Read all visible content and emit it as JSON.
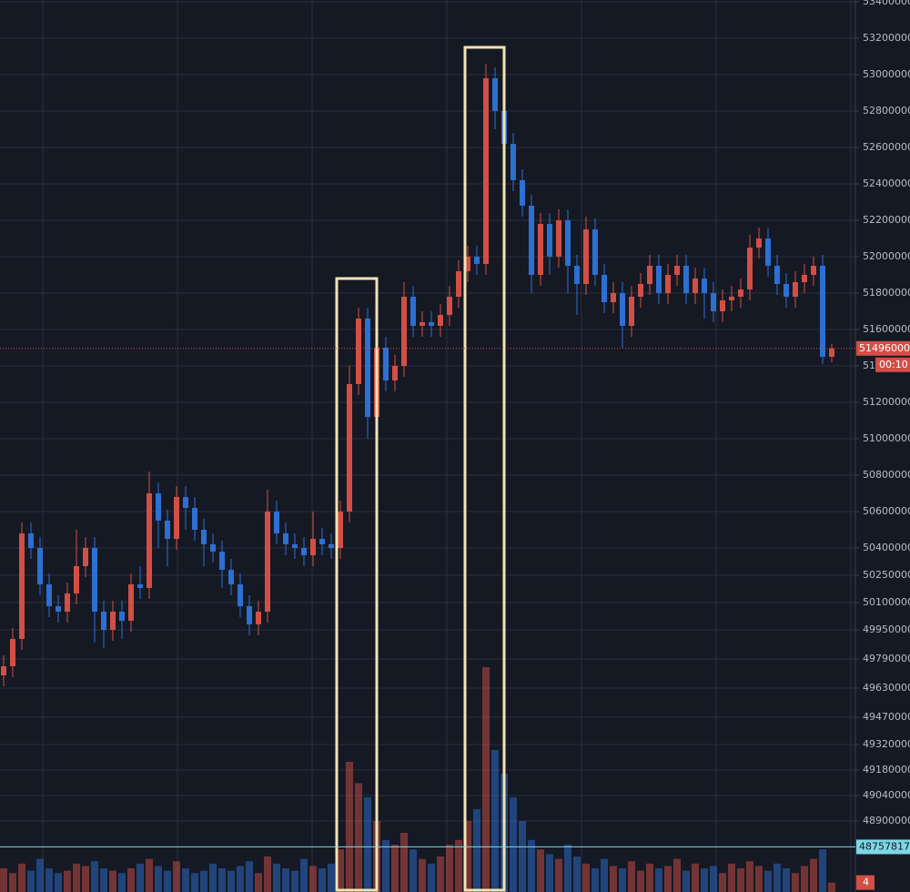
{
  "chart_data": {
    "type": "candlestick",
    "ylim": [
      48510000,
      53410000
    ],
    "yticks": [
      53400000,
      53200000,
      53000000,
      52800000,
      52600000,
      52400000,
      52200000,
      52000000,
      51800000,
      51600000,
      51400000,
      51200000,
      51000000,
      50800000,
      50600000,
      50400000,
      50250000,
      50100000,
      49950000,
      49790000,
      49630000,
      49470000,
      49320000,
      49180000,
      49040000,
      48900000
    ],
    "grid": true,
    "up_color": "#d24f45",
    "down_color": "#2d6fd2",
    "series": {
      "open": [
        49700000,
        49750000,
        49900000,
        50480000,
        50400000,
        50200000,
        50080000,
        50050000,
        50150000,
        50300000,
        50400000,
        50050000,
        49950000,
        50050000,
        50000000,
        50200000,
        50180000,
        50700000,
        50550000,
        50450000,
        50680000,
        50620000,
        50500000,
        50420000,
        50380000,
        50280000,
        50200000,
        50080000,
        49980000,
        50050000,
        50600000,
        50480000,
        50420000,
        50400000,
        50360000,
        50450000,
        50420000,
        50400000,
        50600000,
        51300000,
        51660000,
        51120000,
        51500000,
        51320000,
        51400000,
        51780000,
        51620000,
        51640000,
        51620000,
        51680000,
        51780000,
        51920000,
        52000000,
        51960000,
        52980000,
        52800000,
        52620000,
        52420000,
        52280000,
        51900000,
        52180000,
        52000000,
        52200000,
        51950000,
        51850000,
        52150000,
        51900000,
        51750000,
        51800000,
        51620000,
        51780000,
        51850000,
        51950000,
        51800000,
        51900000,
        51950000,
        51800000,
        51880000,
        51800000,
        51700000,
        51760000,
        51780000,
        51820000,
        52050000,
        52100000,
        51950000,
        51850000,
        51780000,
        51860000,
        51900000,
        51950000,
        51450000
      ],
      "high": [
        49810000,
        49960000,
        50540000,
        50540000,
        50460000,
        50260000,
        50140000,
        50210000,
        50500000,
        50460000,
        50460000,
        50110000,
        50110000,
        50110000,
        50260000,
        50300000,
        50820000,
        50760000,
        50610000,
        50740000,
        50740000,
        50680000,
        50560000,
        50480000,
        50440000,
        50340000,
        50260000,
        50140000,
        50110000,
        50720000,
        50660000,
        50540000,
        50480000,
        50460000,
        50600000,
        50510000,
        50480000,
        50660000,
        51400000,
        51720000,
        51720000,
        51560000,
        51560000,
        51460000,
        51860000,
        51840000,
        51700000,
        51700000,
        51740000,
        51840000,
        51980000,
        52060000,
        52060000,
        53060000,
        53040000,
        52860000,
        52680000,
        52480000,
        52340000,
        52240000,
        52240000,
        52260000,
        52260000,
        52010000,
        52220000,
        52210000,
        51960000,
        51860000,
        51860000,
        51840000,
        51910000,
        52010000,
        52010000,
        51960000,
        52010000,
        52010000,
        51940000,
        51940000,
        51860000,
        51820000,
        51840000,
        51880000,
        52120000,
        52160000,
        52160000,
        52010000,
        51910000,
        51920000,
        51960000,
        52000000,
        52010000,
        51520000
      ],
      "low": [
        49640000,
        49690000,
        49840000,
        50340000,
        50140000,
        50020000,
        49990000,
        49990000,
        50090000,
        50240000,
        49880000,
        49850000,
        49890000,
        49900000,
        49940000,
        50120000,
        50120000,
        50400000,
        50300000,
        50390000,
        50500000,
        50440000,
        50300000,
        50320000,
        50180000,
        50140000,
        50020000,
        49920000,
        49920000,
        49990000,
        50420000,
        50360000,
        50340000,
        50300000,
        50300000,
        50360000,
        50340000,
        50340000,
        50540000,
        51240000,
        51000000,
        51060000,
        51260000,
        51260000,
        51340000,
        51560000,
        51560000,
        51560000,
        51560000,
        51620000,
        51720000,
        51860000,
        51900000,
        51900000,
        52700000,
        52500000,
        52360000,
        52220000,
        51800000,
        51840000,
        51900000,
        51940000,
        51800000,
        51680000,
        51790000,
        51840000,
        51690000,
        51690000,
        51500000,
        51560000,
        51720000,
        51790000,
        51740000,
        51740000,
        51840000,
        51740000,
        51740000,
        51660000,
        51640000,
        51640000,
        51700000,
        51720000,
        51760000,
        51990000,
        51890000,
        51790000,
        51720000,
        51720000,
        51800000,
        51840000,
        51410000,
        51420000
      ],
      "close": [
        49750000,
        49900000,
        50480000,
        50400000,
        50200000,
        50080000,
        50050000,
        50150000,
        50300000,
        50400000,
        50050000,
        49950000,
        50050000,
        50000000,
        50200000,
        50180000,
        50700000,
        50550000,
        50450000,
        50680000,
        50620000,
        50500000,
        50420000,
        50380000,
        50280000,
        50200000,
        50080000,
        49980000,
        50050000,
        50600000,
        50480000,
        50420000,
        50400000,
        50360000,
        50450000,
        50420000,
        50400000,
        50600000,
        51300000,
        51660000,
        51120000,
        51500000,
        51320000,
        51400000,
        51780000,
        51620000,
        51640000,
        51620000,
        51680000,
        51780000,
        51920000,
        52000000,
        51960000,
        52980000,
        52800000,
        52620000,
        52420000,
        52280000,
        51900000,
        52180000,
        52000000,
        52200000,
        51950000,
        51850000,
        52150000,
        51900000,
        51750000,
        51800000,
        51620000,
        51780000,
        51850000,
        51950000,
        51800000,
        51900000,
        51950000,
        51800000,
        51880000,
        51800000,
        51700000,
        51760000,
        51780000,
        51820000,
        52050000,
        52100000,
        51950000,
        51850000,
        51780000,
        51860000,
        51900000,
        51950000,
        51450000,
        51496000
      ]
    },
    "volume": {
      "ylim": [
        0,
        100
      ],
      "values": [
        10,
        8,
        12,
        9,
        14,
        10,
        8,
        9,
        12,
        11,
        13,
        10,
        9,
        8,
        10,
        12,
        14,
        11,
        9,
        13,
        10,
        8,
        9,
        12,
        10,
        9,
        11,
        13,
        8,
        15,
        12,
        10,
        9,
        14,
        11,
        10,
        12,
        18,
        55,
        46,
        40,
        30,
        22,
        20,
        25,
        18,
        14,
        12,
        15,
        20,
        22,
        30,
        35,
        95,
        60,
        50,
        40,
        30,
        22,
        18,
        16,
        14,
        20,
        15,
        12,
        10,
        14,
        11,
        10,
        13,
        9,
        12,
        10,
        11,
        14,
        9,
        12,
        10,
        11,
        8,
        12,
        10,
        13,
        11,
        9,
        12,
        10,
        8,
        11,
        14,
        18,
        4
      ]
    },
    "current_price": 51496000,
    "countdown": "00:10",
    "volume_marker": 48757817,
    "volume_marker_color": "#7fd6e6"
  }
}
